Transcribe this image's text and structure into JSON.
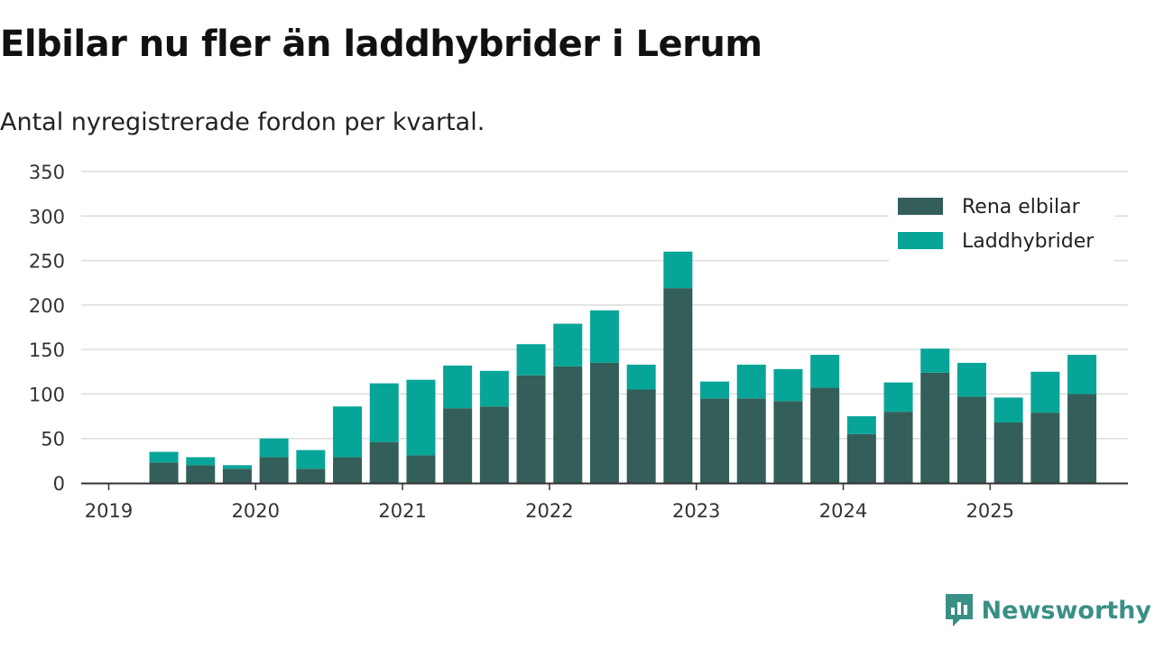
{
  "title": "Elbilar nu fler än laddhybrider i Lerum",
  "subtitle": "Antal nyregistrerade fordon per kvartal.",
  "brand": "Newsworthy",
  "colors": {
    "elbilar": "#335e59",
    "laddhybrider": "#07a597",
    "grid": "#dcdcdc",
    "axis": "#333333"
  },
  "chart_data": {
    "type": "bar",
    "stacked": true,
    "title": "Elbilar nu fler än laddhybrider i Lerum",
    "subtitle": "Antal nyregistrerade fordon per kvartal.",
    "ylim": [
      0,
      350
    ],
    "yticks": [
      0,
      50,
      100,
      150,
      200,
      250,
      300,
      350
    ],
    "xticks": [
      "2019",
      "2020",
      "2021",
      "2022",
      "2023",
      "2024",
      "2025"
    ],
    "legend_position": "top-right",
    "grid": true,
    "categories": [
      "2019-Q2",
      "2019-Q3",
      "2019-Q4",
      "2020-Q1",
      "2020-Q2",
      "2020-Q3",
      "2020-Q4",
      "2021-Q1",
      "2021-Q2",
      "2021-Q3",
      "2021-Q4",
      "2022-Q1",
      "2022-Q2",
      "2022-Q3",
      "2022-Q4",
      "2023-Q1",
      "2023-Q2",
      "2023-Q3",
      "2023-Q4",
      "2024-Q1",
      "2024-Q2",
      "2024-Q3",
      "2024-Q4",
      "2025-Q1",
      "2025-Q2",
      "2025-Q3"
    ],
    "series": [
      {
        "name": "Rena elbilar",
        "values": [
          23,
          20,
          16,
          29,
          16,
          29,
          46,
          31,
          84,
          86,
          121,
          131,
          135,
          105,
          219,
          95,
          95,
          92,
          107,
          55,
          80,
          124,
          97,
          68,
          79,
          100
        ]
      },
      {
        "name": "Laddhybrider",
        "values": [
          12,
          9,
          4,
          21,
          21,
          57,
          66,
          85,
          48,
          40,
          35,
          48,
          59,
          28,
          41,
          19,
          38,
          36,
          37,
          20,
          33,
          27,
          38,
          28,
          46,
          44
        ]
      }
    ]
  }
}
